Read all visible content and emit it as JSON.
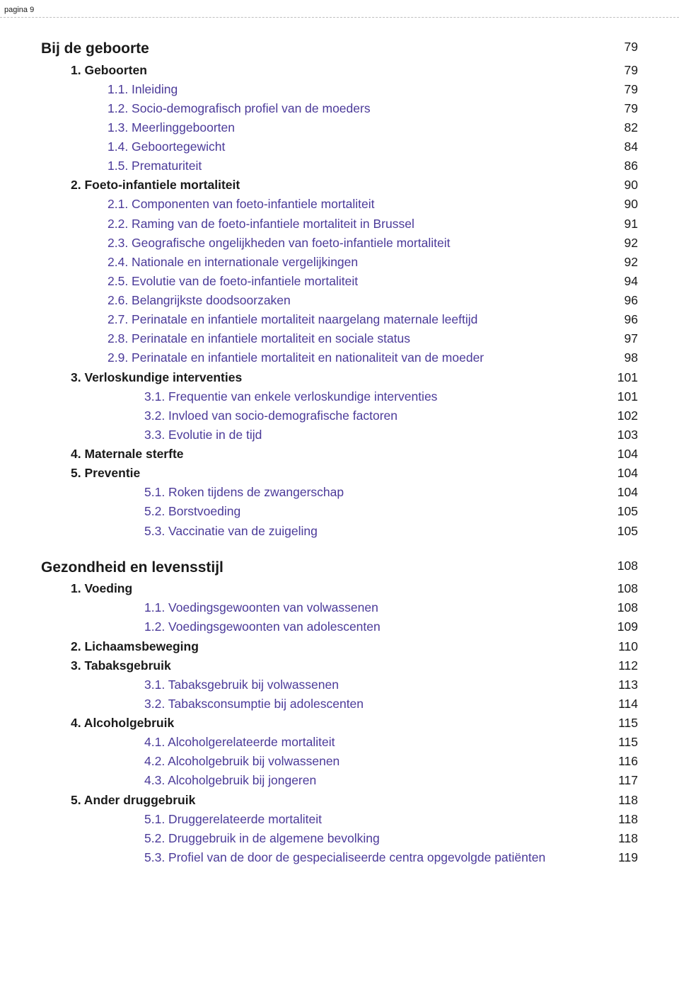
{
  "page_header": "pagina 9",
  "chapters": [
    {
      "title": "Bij de geboorte",
      "page": "79",
      "sections": [
        {
          "title": "1. Geboorten",
          "page": "79",
          "items": [
            {
              "label": "1.1. Inleiding",
              "page": "79",
              "level": "sub"
            },
            {
              "label": "1.2. Socio-demografisch profiel van de moeders",
              "page": "79",
              "level": "sub"
            },
            {
              "label": "1.3. Meerlinggeboorten",
              "page": "82",
              "level": "sub"
            },
            {
              "label": "1.4. Geboortegewicht",
              "page": "84",
              "level": "sub"
            },
            {
              "label": "1.5. Prematuriteit",
              "page": "86",
              "level": "sub"
            }
          ]
        },
        {
          "title": "2. Foeto-infantiele mortaliteit",
          "page": "90",
          "items": [
            {
              "label": "2.1. Componenten van foeto-infantiele mortaliteit",
              "page": "90",
              "level": "sub"
            },
            {
              "label": "2.2. Raming van de foeto-infantiele mortaliteit in Brussel",
              "page": "91",
              "level": "sub"
            },
            {
              "label": "2.3. Geografische ongelijkheden van foeto-infantiele mortaliteit",
              "page": "92",
              "level": "sub"
            },
            {
              "label": "2.4. Nationale en internationale vergelijkingen",
              "page": "92",
              "level": "sub"
            },
            {
              "label": "2.5. Evolutie van de foeto-infantiele mortaliteit",
              "page": "94",
              "level": "sub"
            },
            {
              "label": "2.6. Belangrijkste doodsoorzaken",
              "page": "96",
              "level": "sub"
            },
            {
              "label": "2.7. Perinatale en infantiele mortaliteit naargelang maternale leeftijd",
              "page": "96",
              "level": "sub"
            },
            {
              "label": "2.8. Perinatale en infantiele mortaliteit en sociale status",
              "page": "97",
              "level": "sub"
            },
            {
              "label": "2.9. Perinatale en infantiele mortaliteit en nationaliteit van de moeder",
              "page": "98",
              "level": "sub"
            }
          ]
        },
        {
          "title": "3. Verloskundige interventies",
          "page": "101",
          "items": [
            {
              "label": "3.1. Frequentie van enkele verloskundige interventies",
              "page": "101",
              "level": "subsub"
            },
            {
              "label": "3.2. Invloed van socio-demografische factoren",
              "page": "102",
              "level": "subsub"
            },
            {
              "label": "3.3. Evolutie in de tijd",
              "page": "103",
              "level": "subsub"
            }
          ]
        },
        {
          "title": "4. Maternale sterfte",
          "page": "104",
          "items": []
        },
        {
          "title": "5. Preventie",
          "page": "104",
          "items": [
            {
              "label": "5.1. Roken tijdens de zwangerschap",
              "page": "104",
              "level": "subsub"
            },
            {
              "label": "5.2. Borstvoeding",
              "page": "105",
              "level": "subsub"
            },
            {
              "label": "5.3. Vaccinatie van de zuigeling",
              "page": "105",
              "level": "subsub"
            }
          ]
        }
      ]
    },
    {
      "title": "Gezondheid en levensstijl",
      "page": "108",
      "sections": [
        {
          "title": "1. Voeding",
          "page": "108",
          "items": [
            {
              "label": "1.1. Voedingsgewoonten van volwassenen",
              "page": "108",
              "level": "subsub"
            },
            {
              "label": "1.2. Voedingsgewoonten van adolescenten",
              "page": "109",
              "level": "subsub"
            }
          ]
        },
        {
          "title": "2. Lichaamsbeweging",
          "page": "110",
          "items": []
        },
        {
          "title": "3. Tabaksgebruik",
          "page": "112",
          "items": [
            {
              "label": "3.1. Tabaksgebruik bij volwassenen",
              "page": "113",
              "level": "subsub"
            },
            {
              "label": "3.2. Tabaksconsumptie bij adolescenten",
              "page": "114",
              "level": "subsub"
            }
          ]
        },
        {
          "title": "4. Alcoholgebruik",
          "page": "115",
          "items": [
            {
              "label": "4.1. Alcoholgerelateerde mortaliteit",
              "page": "115",
              "level": "subsub"
            },
            {
              "label": "4.2. Alcoholgebruik bij volwassenen",
              "page": "116",
              "level": "subsub"
            },
            {
              "label": "4.3. Alcoholgebruik bij jongeren",
              "page": "117",
              "level": "subsub"
            }
          ]
        },
        {
          "title": "5. Ander druggebruik",
          "page": "118",
          "items": [
            {
              "label": "5.1. Druggerelateerde mortaliteit",
              "page": "118",
              "level": "subsub"
            },
            {
              "label": "5.2. Druggebruik in de algemene bevolking",
              "page": "118",
              "level": "subsub"
            },
            {
              "label": "5.3. Profiel van de door de gespecialiseerde centra opgevolgde patiënten",
              "page": "119",
              "level": "subsub"
            }
          ]
        }
      ]
    }
  ]
}
